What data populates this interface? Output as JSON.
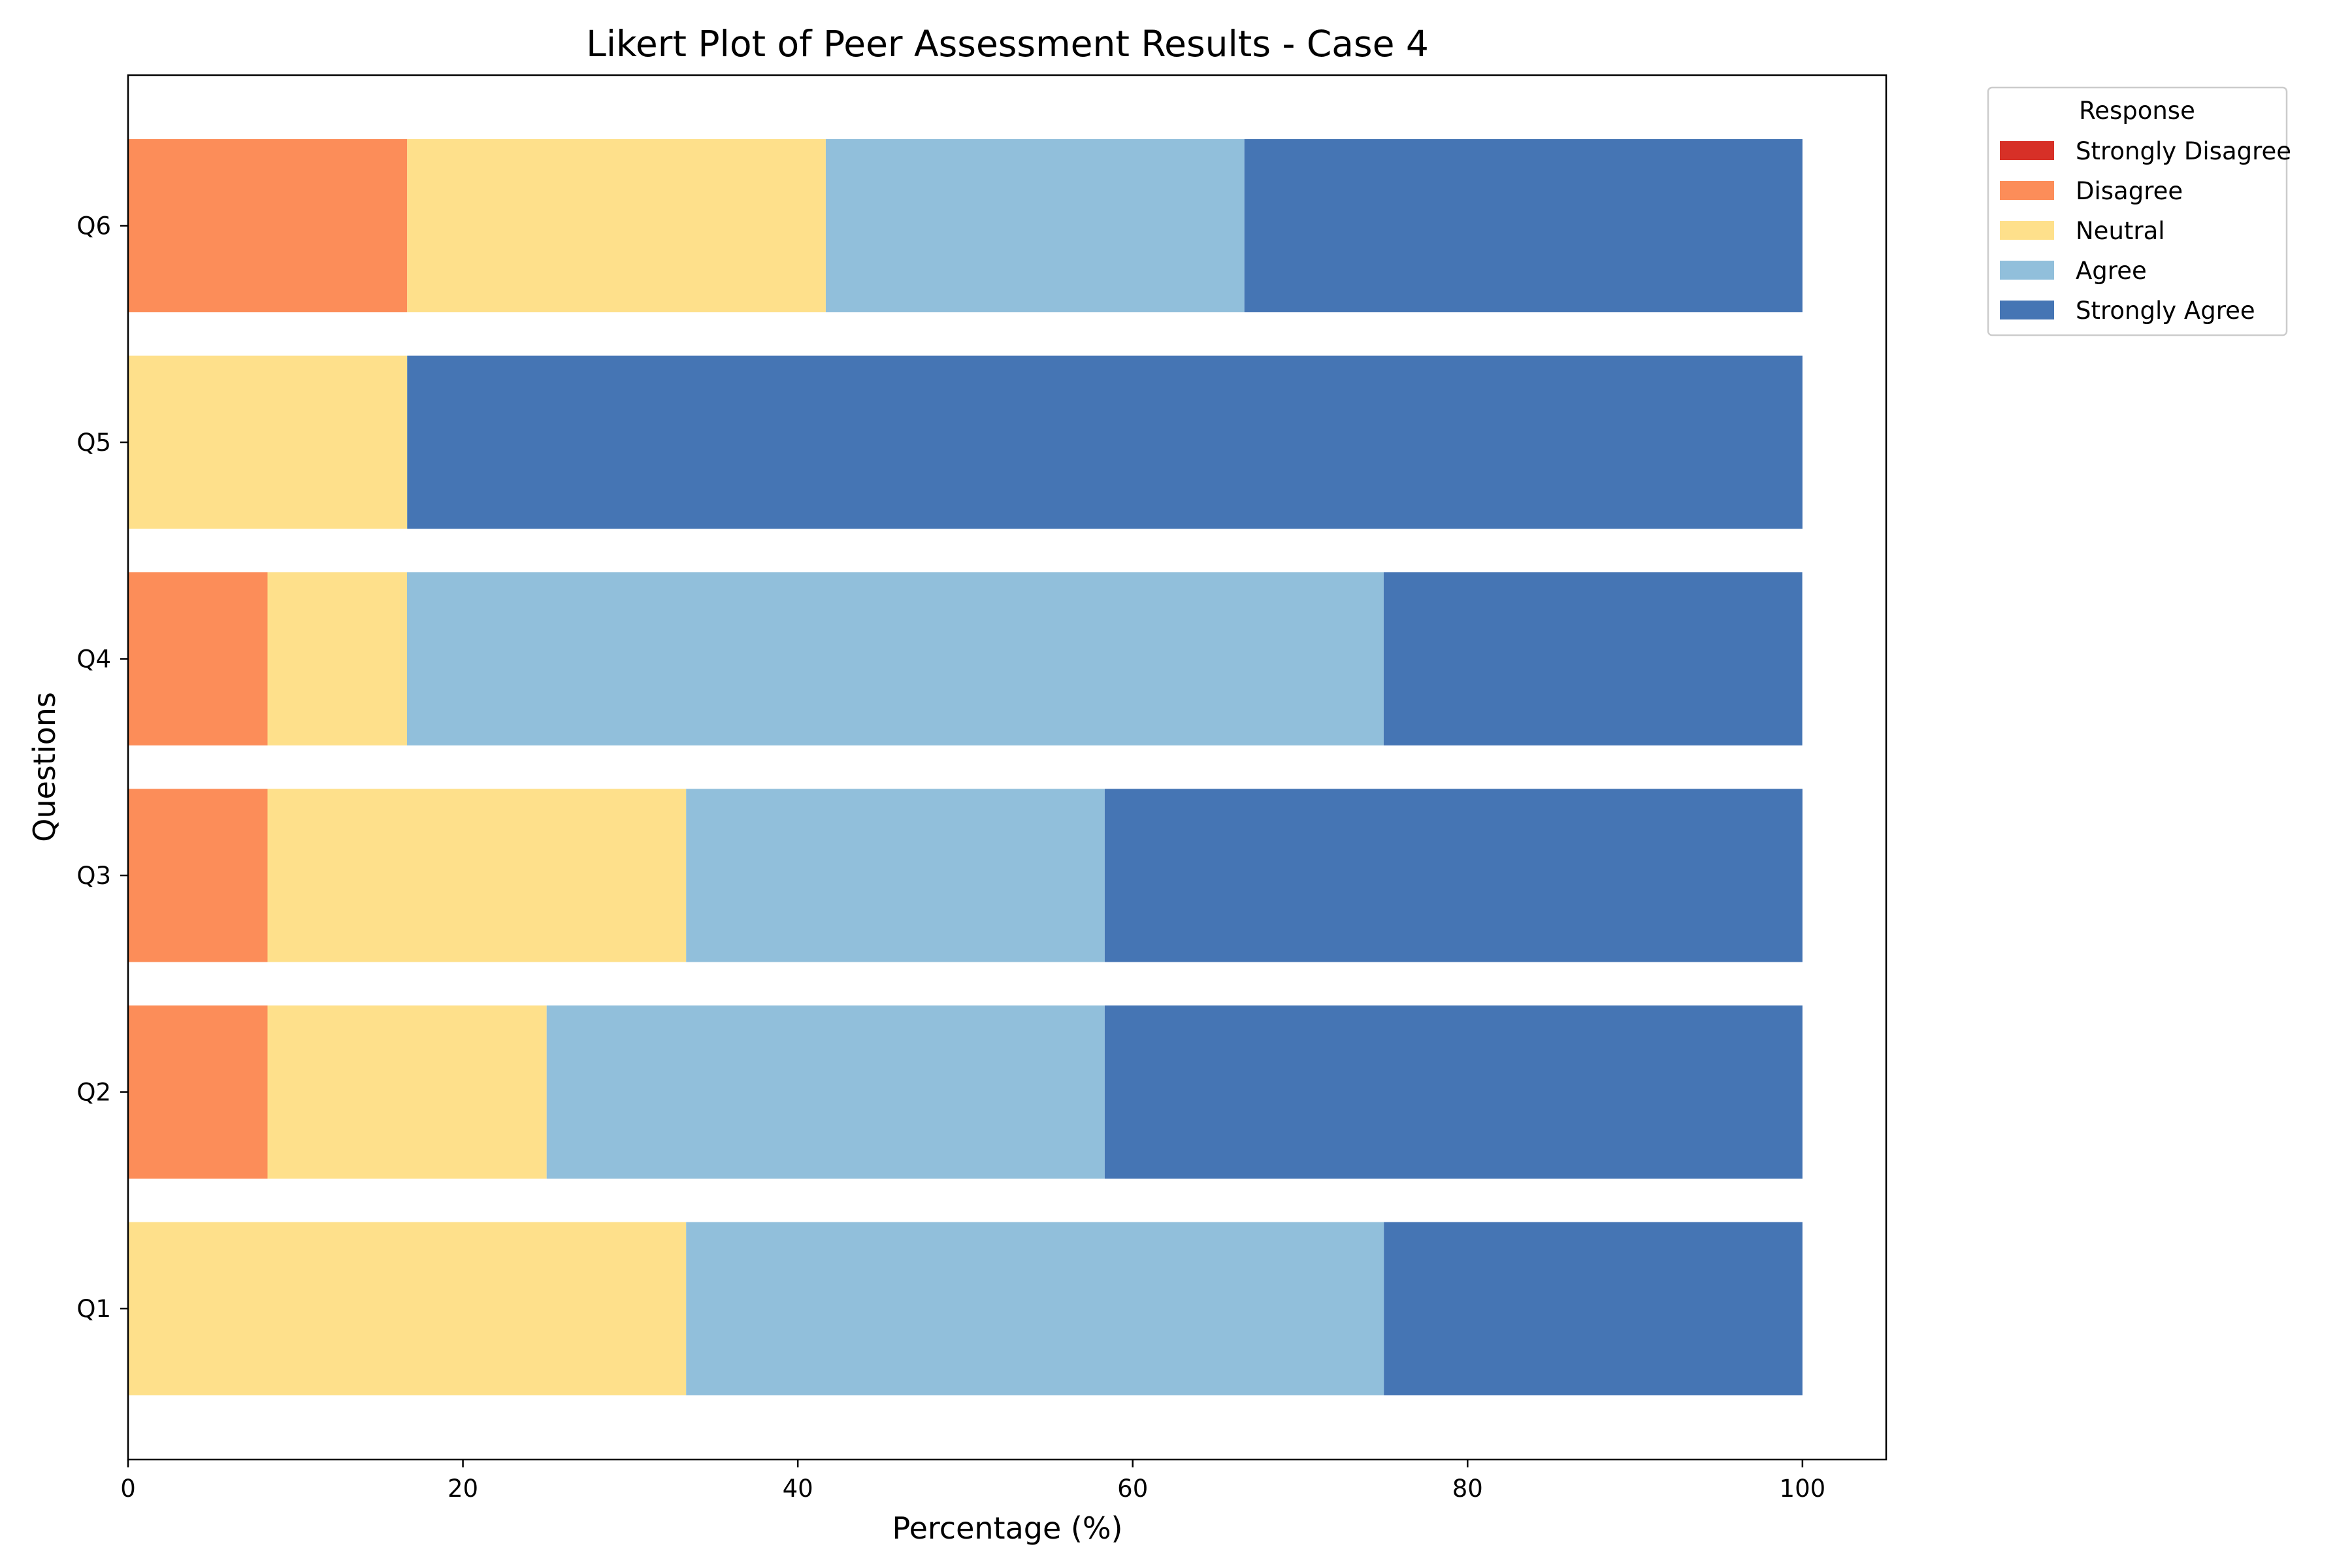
{
  "chart_data": {
    "type": "bar",
    "orientation": "horizontal",
    "stacked": true,
    "title": "Likert Plot of Peer Assessment Results - Case 4",
    "xlabel": "Percentage (%)",
    "ylabel": "Questions",
    "xlim": [
      0,
      105
    ],
    "xticks": [
      0,
      20,
      40,
      60,
      80,
      100
    ],
    "grid": false,
    "categories": [
      "Q1",
      "Q2",
      "Q3",
      "Q4",
      "Q5",
      "Q6"
    ],
    "legend": {
      "title": "Response",
      "position": "outside-top-right"
    },
    "series": [
      {
        "name": "Strongly Disagree",
        "color": "#d73027",
        "values": [
          0,
          0,
          0,
          0,
          0,
          0
        ]
      },
      {
        "name": "Disagree",
        "color": "#fc8d59",
        "values": [
          0,
          8.33,
          8.33,
          8.33,
          0,
          16.67
        ]
      },
      {
        "name": "Neutral",
        "color": "#fee08b",
        "values": [
          33.33,
          16.67,
          25.0,
          8.33,
          16.67,
          25.0
        ]
      },
      {
        "name": "Agree",
        "color": "#91bfdb",
        "values": [
          41.67,
          33.33,
          25.0,
          58.33,
          0,
          25.0
        ]
      },
      {
        "name": "Strongly Agree",
        "color": "#4575b4",
        "values": [
          25.0,
          41.67,
          41.67,
          25.0,
          83.33,
          33.33
        ]
      }
    ]
  }
}
